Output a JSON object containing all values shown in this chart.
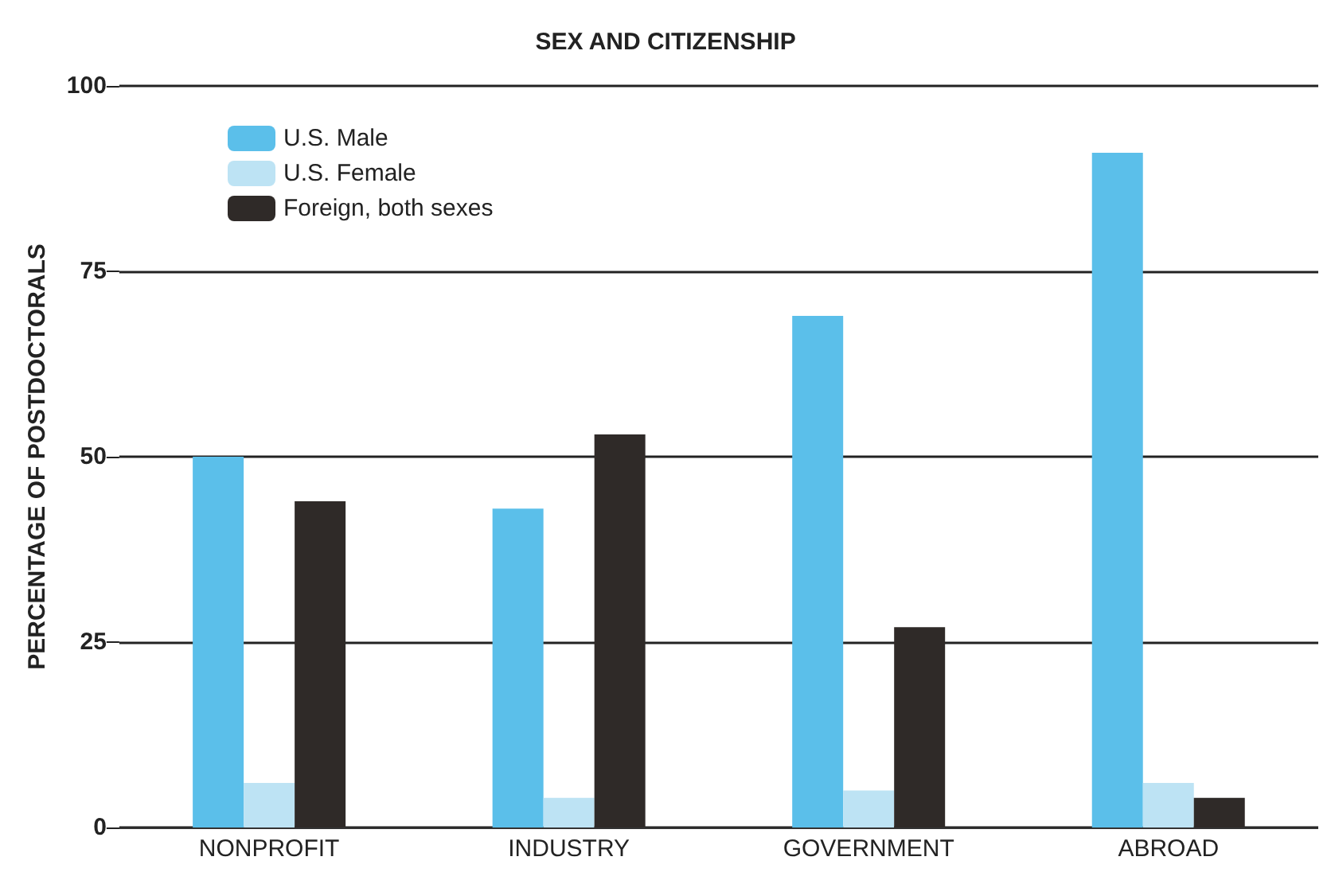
{
  "chart_data": {
    "type": "bar",
    "title": "SEX AND CITIZENSHIP",
    "ylabel": "PERCENTAGE OF POSTDOCTORALS",
    "categories": [
      "NONPROFIT",
      "INDUSTRY",
      "GOVERNMENT",
      "ABROAD"
    ],
    "series": [
      {
        "name": "U.S. Male",
        "color": "#5bbfea",
        "values": [
          50,
          43,
          69,
          91
        ]
      },
      {
        "name": "U.S. Female",
        "color": "#bde3f4",
        "values": [
          6,
          4,
          5,
          6
        ]
      },
      {
        "name": "Foreign, both sexes",
        "color": "#2f2a28",
        "values": [
          44,
          53,
          27,
          4
        ]
      }
    ],
    "ylim": [
      0,
      100
    ],
    "yticks": [
      0,
      25,
      50,
      75,
      100
    ],
    "grid": "y",
    "legend": "top left"
  }
}
